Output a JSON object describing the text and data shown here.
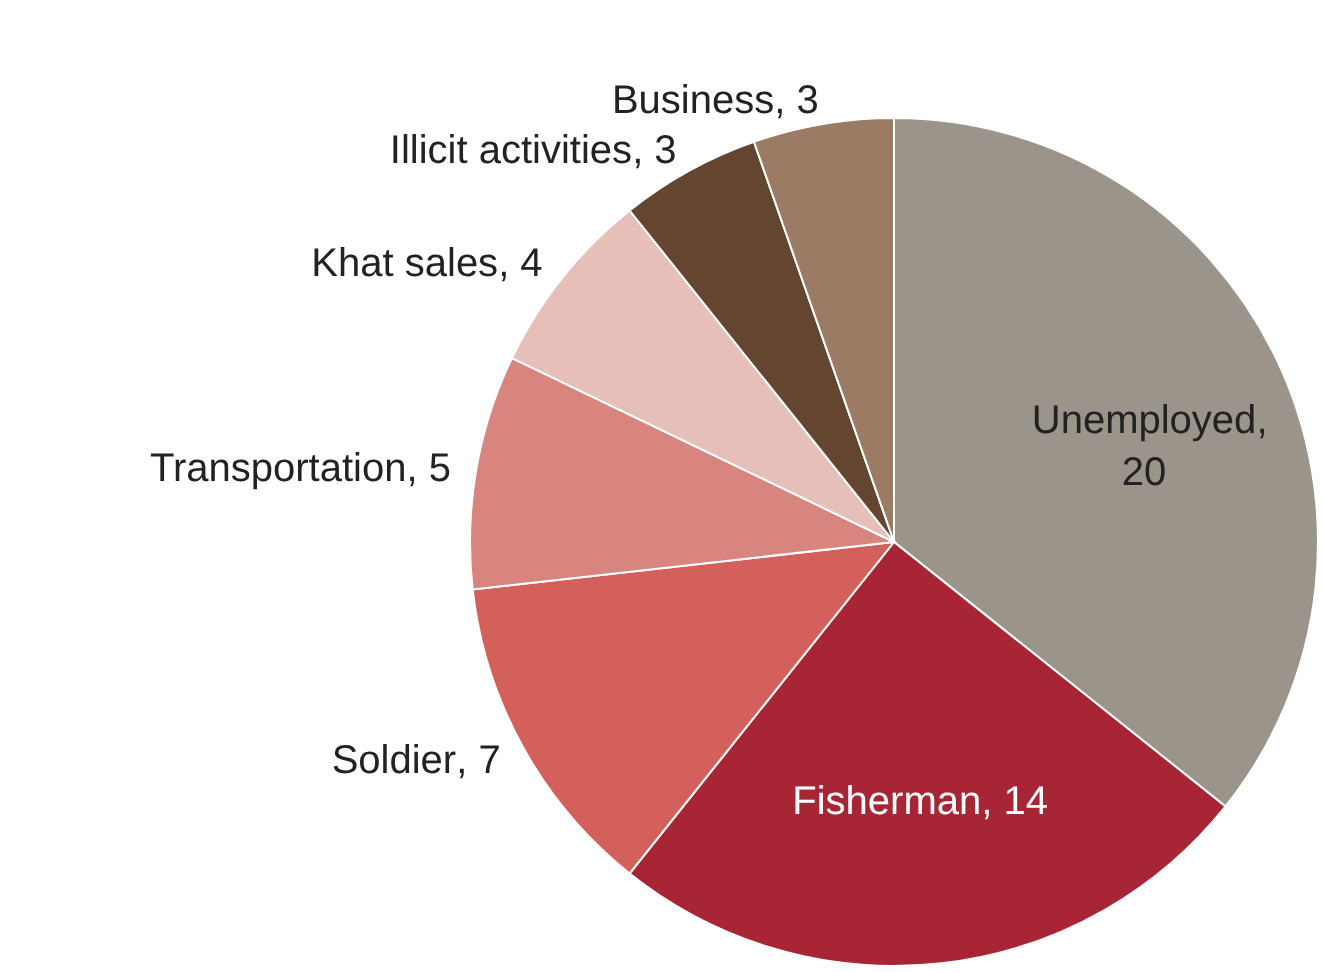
{
  "chart_data": {
    "type": "pie",
    "categories": [
      "Unemployed",
      "Fisherman",
      "Soldier",
      "Transportation",
      "Khat sales",
      "Illicit activities",
      "Business"
    ],
    "values": [
      20,
      14,
      7,
      5,
      4,
      3,
      3
    ],
    "colors": [
      "#9a948b",
      "#a82535",
      "#d4605c",
      "#d9857f",
      "#e6c0b8",
      "#634530",
      "#9c7b65"
    ],
    "value_labels": [
      ",\n20",
      ", 14",
      ", 7",
      ", 5",
      ", 4",
      ", 3",
      ", 3"
    ]
  }
}
